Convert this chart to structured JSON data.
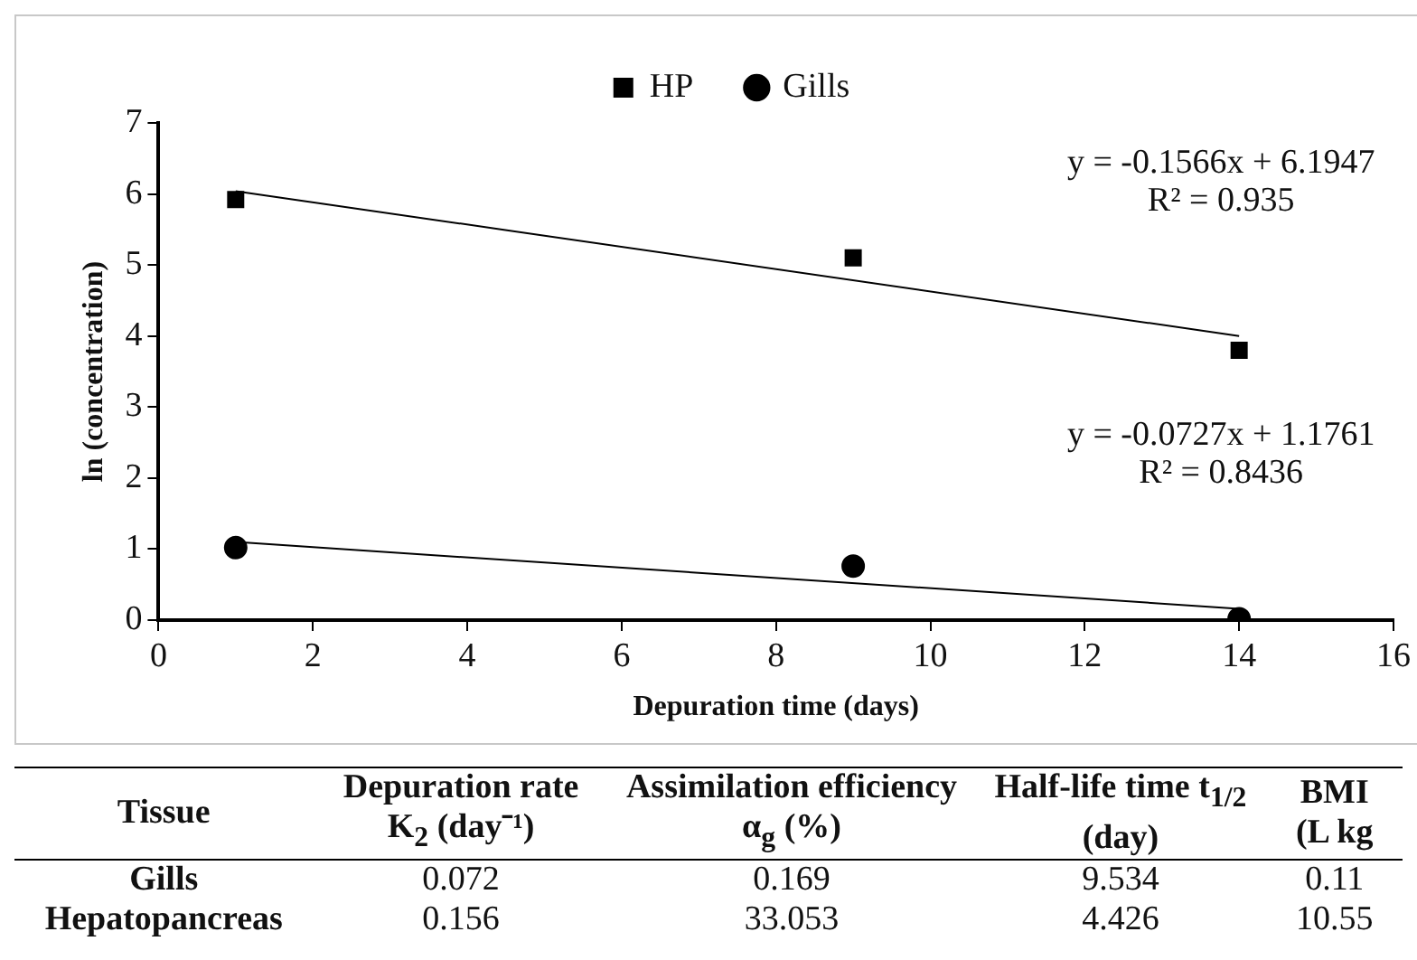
{
  "chart_data": {
    "type": "scatter",
    "xlabel": "Depuration time (days)",
    "ylabel": "ln (concentration)",
    "xlim": [
      0,
      16
    ],
    "xticks": [
      0,
      2,
      4,
      6,
      8,
      10,
      12,
      14,
      16
    ],
    "ylim": [
      0,
      7
    ],
    "yticks": [
      0,
      1,
      2,
      3,
      4,
      5,
      6,
      7
    ],
    "grid": false,
    "legend": "top",
    "series": [
      {
        "name": "HP",
        "color": "#000000",
        "marker": "square",
        "x": [
          1,
          9,
          14
        ],
        "values": [
          5.92,
          5.1,
          3.8
        ]
      },
      {
        "name": "Gills",
        "color": "#000000",
        "marker": "circle",
        "x": [
          1,
          9,
          14
        ],
        "values": [
          1.02,
          0.76,
          0.02
        ]
      },
      {
        "type": "line",
        "color": "#000000",
        "marker": "none",
        "x": [
          1,
          14
        ],
        "values": [
          6.04,
          4.0
        ]
      },
      {
        "type": "line",
        "color": "#000000",
        "marker": "none",
        "x": [
          1,
          14
        ],
        "values": [
          1.1,
          0.16
        ]
      }
    ],
    "annotations": [
      "y = -0.1566x + 6.1947\nR² = 0.935",
      "y = -0.0727x + 1.1761\nR² = 0.8436",
      "Tissue",
      "Depuration rate K$_{2}$ (day⁻¹)",
      "Assimilation efficiency α$_{g}$ (%)",
      "Half-life time t$_{1/2}$ (day)",
      "BMI (L kg",
      "Gills",
      "0.072",
      "0.169",
      "9.534",
      "0.11",
      "Hepatopancreas",
      "0.156",
      "33.053",
      "4.426",
      "10.55"
    ]
  }
}
